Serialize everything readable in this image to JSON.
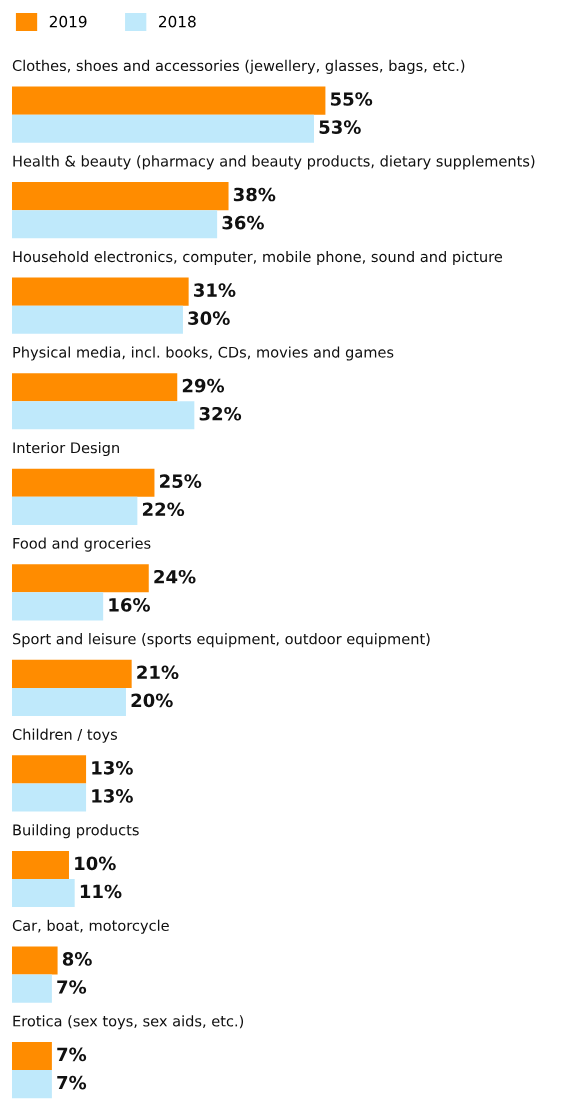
{
  "chart_data": {
    "type": "bar",
    "orientation": "horizontal",
    "categories": [
      "Clothes, shoes and accessories (jewellery, glasses, bags, etc.)",
      "Health & beauty (pharmacy and beauty products, dietary supplements)",
      "Household electronics, computer, mobile phone, sound and picture",
      "Physical media, incl. books, CDs, movies and games",
      "Interior Design",
      "Food and groceries",
      "Sport and leisure (sports equipment, outdoor equipment)",
      "Children / toys",
      "Building products",
      "Car, boat, motorcycle",
      "Erotica (sex toys, sex aids, etc.)"
    ],
    "series": [
      {
        "name": "2019",
        "color": "#ff8c00",
        "values": [
          55,
          38,
          31,
          29,
          25,
          24,
          21,
          13,
          10,
          8,
          7
        ],
        "value_labels": [
          "55%",
          "38%",
          "31%",
          "29%",
          "25%",
          "24%",
          "21%",
          "13%",
          "10%",
          "8%",
          "7%"
        ]
      },
      {
        "name": "2018",
        "color": "#bfe9fb",
        "values": [
          53,
          36,
          30,
          32,
          22,
          16,
          20,
          13,
          11,
          7,
          7
        ],
        "value_labels": [
          "53%",
          "36%",
          "30%",
          "32%",
          "22%",
          "16%",
          "20%",
          "13%",
          "11%",
          "7%",
          "7%"
        ]
      }
    ],
    "legend": "top left"
  }
}
